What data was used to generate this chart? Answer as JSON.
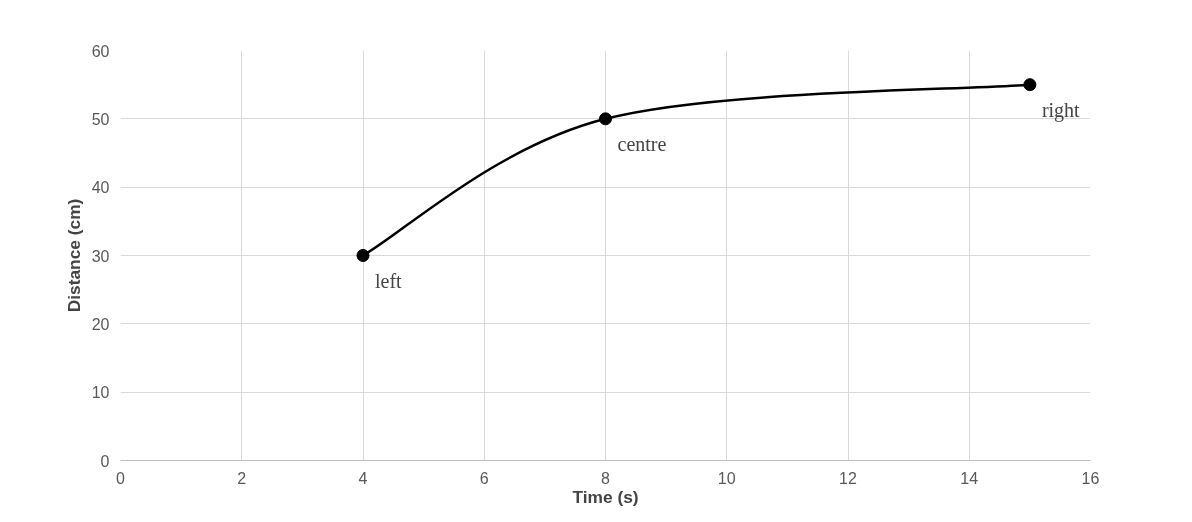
{
  "chart_data": {
    "type": "line",
    "xlabel": "Time (s)",
    "ylabel": "Distance (cm)",
    "x": [
      4,
      8,
      15
    ],
    "series": [
      {
        "color": "#000000",
        "values": [
          30,
          50,
          55
        ]
      }
    ],
    "xlim": [
      0,
      16
    ],
    "xticks": [
      0,
      2,
      4,
      6,
      8,
      10,
      12,
      14,
      16
    ],
    "ylim": [
      0,
      60
    ],
    "yticks": [
      0,
      10,
      20,
      30,
      40,
      50,
      60
    ],
    "grid": true,
    "marker": "circle",
    "line_style": "solid",
    "annotations": [
      {
        "text": "left",
        "x": 4,
        "y": 30
      },
      {
        "text": "centre",
        "x": 8,
        "y": 50
      },
      {
        "text": "right",
        "x": 15,
        "y": 55
      }
    ]
  }
}
